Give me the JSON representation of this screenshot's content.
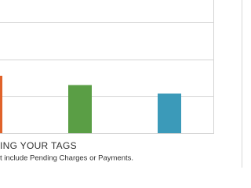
{
  "chart_data": {
    "type": "bar",
    "title": "ING YOUR TAGS",
    "subtitle": "t include Pending Charges or Payments.",
    "categories": [
      null,
      null,
      null
    ],
    "values": [
      1.55,
      1.3,
      1.07
    ],
    "colors": [
      "#e0622a",
      "#5a9e45",
      "#3b9ab9"
    ],
    "ylim": [
      0,
      3.6
    ],
    "yticks": [
      0,
      1,
      2,
      3
    ],
    "grid": true
  }
}
